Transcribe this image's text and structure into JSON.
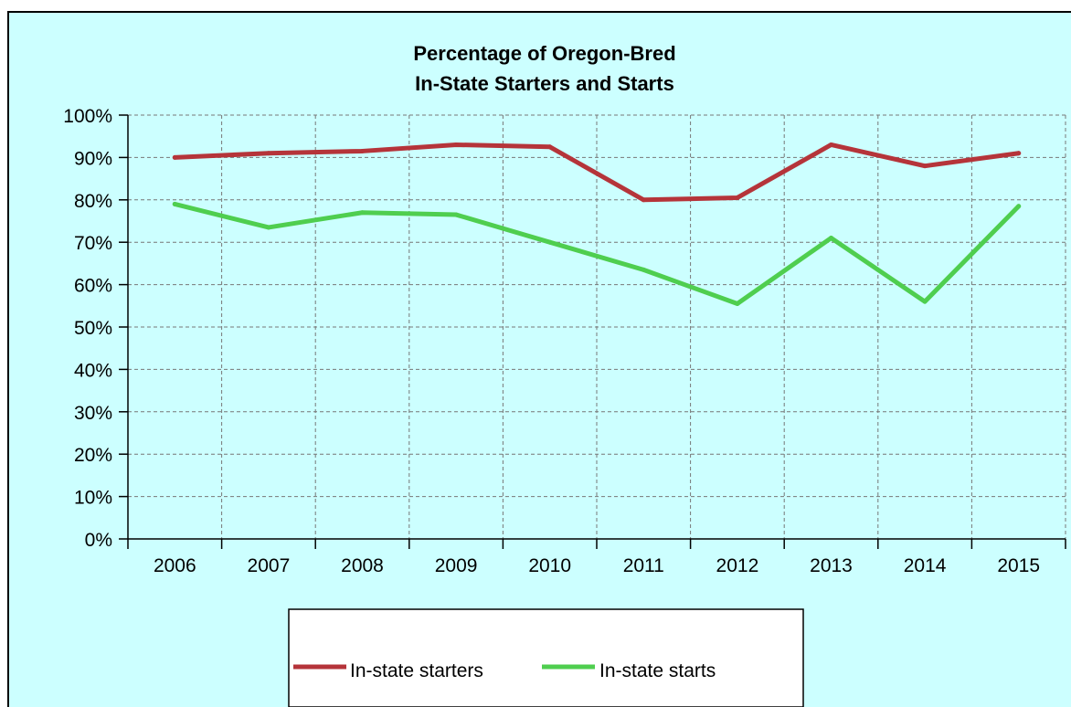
{
  "chart_data": {
    "type": "line",
    "title": [
      "Percentage of Oregon-Bred",
      "In-State Starters and Starts"
    ],
    "categories": [
      "2006",
      "2007",
      "2008",
      "2009",
      "2010",
      "2011",
      "2012",
      "2013",
      "2014",
      "2015"
    ],
    "y_ticks": [
      "0%",
      "10%",
      "20%",
      "30%",
      "40%",
      "50%",
      "60%",
      "70%",
      "80%",
      "90%",
      "100%"
    ],
    "ylim": [
      0,
      100
    ],
    "grid": true,
    "legend_position": "bottom",
    "series": [
      {
        "name": "In-state starters",
        "color": "#b5343a",
        "values": [
          90,
          91,
          91.5,
          93,
          92.5,
          80,
          80.5,
          93,
          88,
          91
        ]
      },
      {
        "name": "In-state starts",
        "color": "#4fce4f",
        "values": [
          79,
          73.5,
          77,
          76.5,
          70,
          63.5,
          55.5,
          71,
          56,
          78.5
        ]
      }
    ]
  }
}
